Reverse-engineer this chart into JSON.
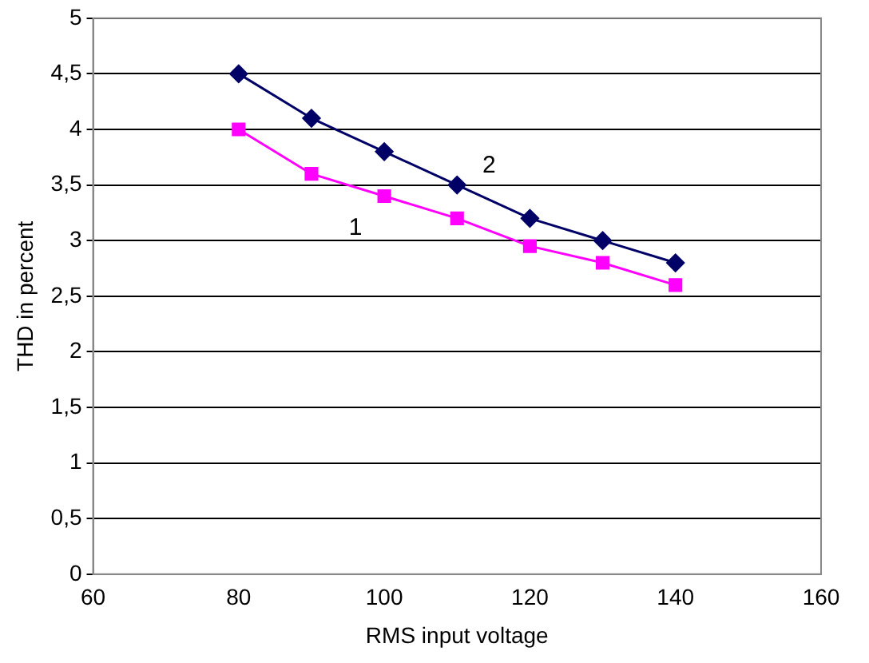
{
  "chart_data": {
    "type": "line",
    "xlabel": "RMS input voltage",
    "ylabel": "THD in percent",
    "x": [
      80,
      90,
      100,
      110,
      120,
      130,
      140
    ],
    "series": [
      {
        "name": "2",
        "color": "#000066",
        "marker": "diamond",
        "values": [
          4.5,
          4.1,
          3.8,
          3.5,
          3.2,
          3.0,
          2.8
        ]
      },
      {
        "name": "1",
        "color": "#ff00ff",
        "marker": "square",
        "values": [
          4.0,
          3.6,
          3.4,
          3.2,
          2.95,
          2.8,
          2.6
        ]
      }
    ],
    "xlim": [
      60,
      160
    ],
    "xticks": [
      60,
      80,
      100,
      120,
      140,
      160
    ],
    "ylim": [
      0,
      5
    ],
    "yticks": [
      0,
      {
        "value": 0.5,
        "label": "0,5"
      },
      1,
      {
        "value": 1.5,
        "label": "1,5"
      },
      2,
      {
        "value": 2.5,
        "label": "2,5"
      },
      3,
      {
        "value": 3.5,
        "label": "3,5"
      },
      4,
      {
        "value": 4.5,
        "label": "4,5"
      },
      5
    ],
    "grid": "y",
    "legend": false
  }
}
